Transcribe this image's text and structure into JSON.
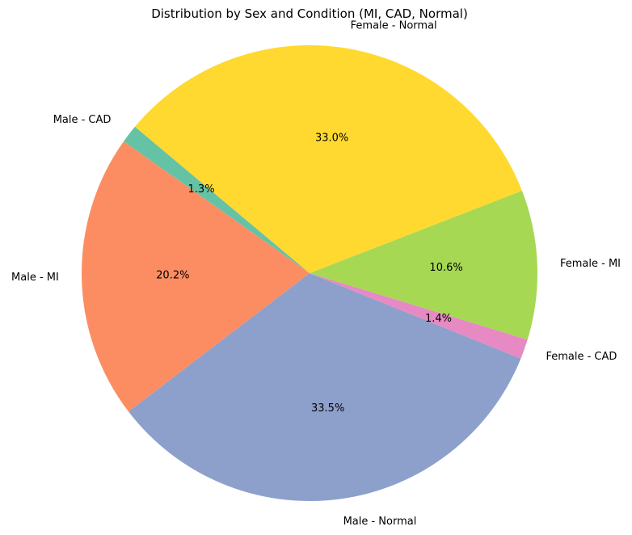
{
  "chart_data": {
    "type": "pie",
    "title": "Distribution by Sex and Condition (MI, CAD, Normal)",
    "start_angle_deg": 140,
    "direction": "counterclockwise",
    "slices": [
      {
        "label": "Male - CAD",
        "value": 1.3,
        "pct_label": "1.3%",
        "color": "#66c2a5"
      },
      {
        "label": "Male - MI",
        "value": 20.2,
        "pct_label": "20.2%",
        "color": "#fc8d62"
      },
      {
        "label": "Male - Normal",
        "value": 33.5,
        "pct_label": "33.5%",
        "color": "#8da0cb"
      },
      {
        "label": "Female - CAD",
        "value": 1.4,
        "pct_label": "1.4%",
        "color": "#e78ac3"
      },
      {
        "label": "Female - MI",
        "value": 10.6,
        "pct_label": "10.6%",
        "color": "#a6d854"
      },
      {
        "label": "Female - Normal",
        "value": 33.0,
        "pct_label": "33.0%",
        "color": "#ffd92f"
      }
    ]
  }
}
